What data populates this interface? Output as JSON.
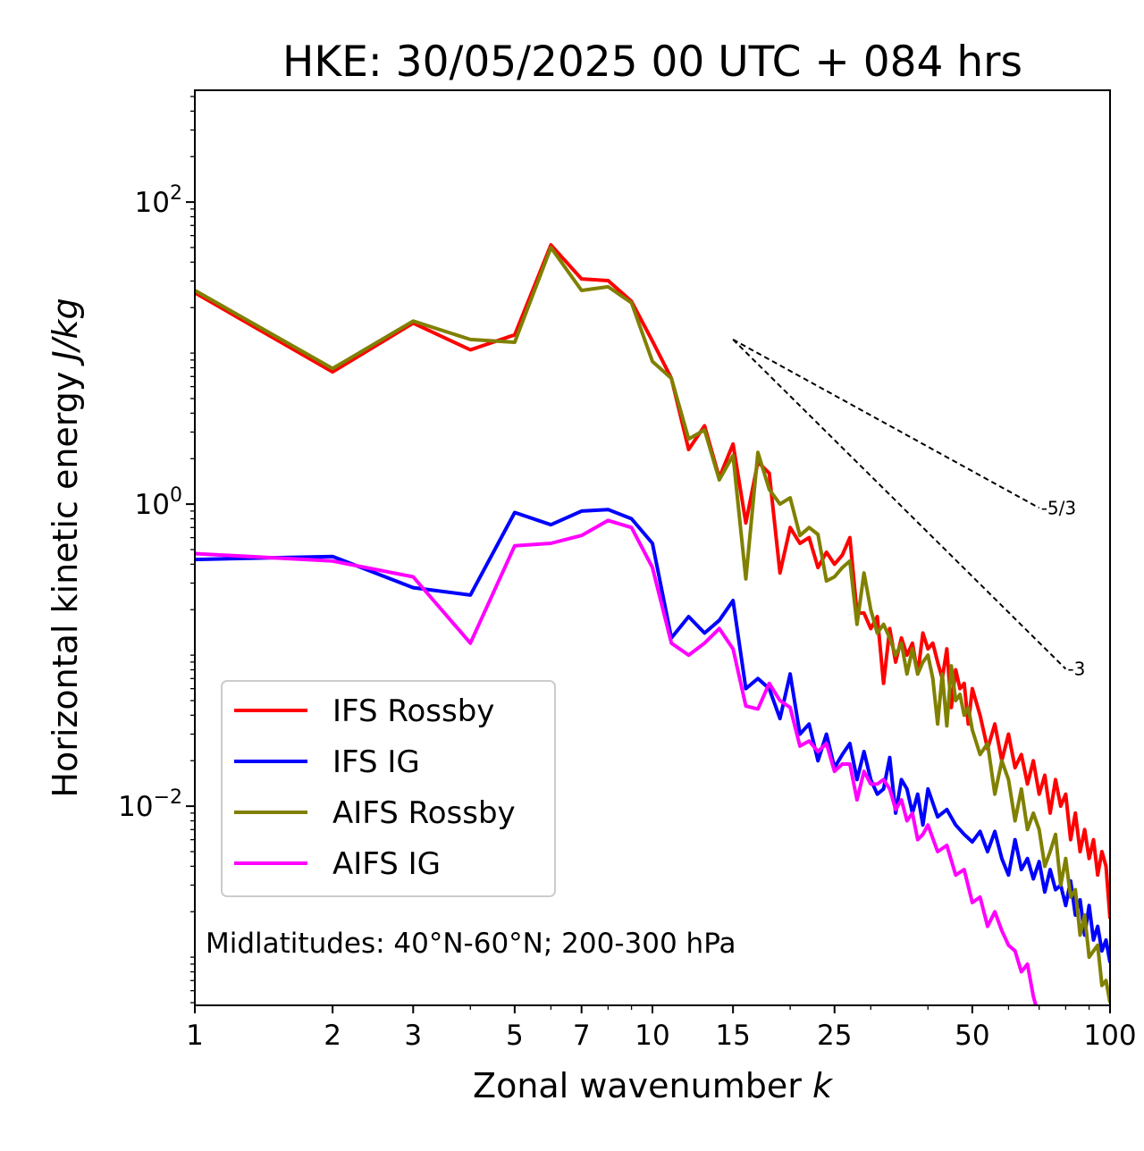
{
  "chart_data": {
    "type": "line",
    "title": "HKE: 30/05/2025 00 UTC + 084 hrs",
    "xlabel": "Zonal wavenumber",
    "xlabel_var": "k",
    "ylabel": "Horizontal kinetic energy",
    "ylabel_unit": "J/kg",
    "xscale": "log",
    "yscale": "log",
    "xlim": [
      1,
      100
    ],
    "ylim": [
      0.00048,
      550
    ],
    "xticks": [
      1,
      2,
      3,
      5,
      7,
      10,
      15,
      25,
      50,
      100
    ],
    "xtick_labels": [
      "1",
      "2",
      "3",
      "5",
      "7",
      "10",
      "15",
      "25",
      "50",
      "100"
    ],
    "yticks": [
      {
        "value": 100,
        "base": "10",
        "exp": "2"
      },
      {
        "value": 1,
        "base": "10",
        "exp": "0"
      },
      {
        "value": 0.01,
        "base": "10",
        "exp": "−2"
      }
    ],
    "grid": false,
    "legend_position": "lower-left",
    "annotation": "Midlatitudes: 40°N-60°N; 200-300 hPa",
    "reference_slopes": [
      {
        "label": "-5/3",
        "slope": -1.6667,
        "x": [
          15,
          70
        ],
        "y0": 12.3
      },
      {
        "label": "-3",
        "slope": -3,
        "x": [
          15,
          80
        ],
        "y0": 12.3
      }
    ],
    "series": [
      {
        "name": "IFS Rossby",
        "color": "#ff0000",
        "points": [
          [
            1,
            25.1
          ],
          [
            2,
            7.5
          ],
          [
            3,
            15.8
          ],
          [
            4,
            10.5
          ],
          [
            5,
            13.2
          ],
          [
            6,
            52
          ],
          [
            7,
            31
          ],
          [
            8,
            30.2
          ],
          [
            9,
            22
          ],
          [
            10,
            12
          ],
          [
            11,
            6.8
          ],
          [
            12,
            2.3
          ],
          [
            13,
            3.3
          ],
          [
            14,
            1.5
          ],
          [
            15,
            2.5
          ],
          [
            16,
            0.75
          ],
          [
            17,
            1.9
          ],
          [
            18,
            1.6
          ],
          [
            19,
            0.35
          ],
          [
            20,
            0.7
          ],
          [
            21,
            0.55
          ],
          [
            22,
            0.6
          ],
          [
            23,
            0.38
          ],
          [
            24,
            0.48
          ],
          [
            25,
            0.4
          ],
          [
            26,
            0.46
          ],
          [
            27,
            0.6
          ],
          [
            28,
            0.19
          ],
          [
            29,
            0.19
          ],
          [
            30,
            0.15
          ],
          [
            31,
            0.18
          ],
          [
            32,
            0.065
          ],
          [
            33,
            0.15
          ],
          [
            34,
            0.09
          ],
          [
            35,
            0.13
          ],
          [
            36,
            0.1
          ],
          [
            37,
            0.12
          ],
          [
            38,
            0.075
          ],
          [
            39,
            0.14
          ],
          [
            40,
            0.11
          ],
          [
            41,
            0.12
          ],
          [
            42,
            0.09
          ],
          [
            43,
            0.07
          ],
          [
            44,
            0.11
          ],
          [
            45,
            0.045
          ],
          [
            46,
            0.08
          ],
          [
            47,
            0.06
          ],
          [
            48,
            0.065
          ],
          [
            49,
            0.035
          ],
          [
            50,
            0.06
          ],
          [
            52,
            0.04
          ],
          [
            54,
            0.024
          ],
          [
            56,
            0.035
          ],
          [
            58,
            0.02
          ],
          [
            60,
            0.03
          ],
          [
            62,
            0.018
          ],
          [
            64,
            0.022
          ],
          [
            66,
            0.014
          ],
          [
            68,
            0.02
          ],
          [
            70,
            0.012
          ],
          [
            72,
            0.016
          ],
          [
            74,
            0.009
          ],
          [
            76,
            0.015
          ],
          [
            78,
            0.01
          ],
          [
            80,
            0.012
          ],
          [
            82,
            0.006
          ],
          [
            84,
            0.009
          ],
          [
            86,
            0.005
          ],
          [
            88,
            0.007
          ],
          [
            90,
            0.0045
          ],
          [
            92,
            0.006
          ],
          [
            94,
            0.0035
          ],
          [
            96,
            0.005
          ],
          [
            98,
            0.004
          ],
          [
            100,
            0.0018
          ]
        ]
      },
      {
        "name": "IFS IG",
        "color": "#0000ff",
        "points": [
          [
            1,
            0.43
          ],
          [
            2,
            0.45
          ],
          [
            3,
            0.28
          ],
          [
            4,
            0.25
          ],
          [
            5,
            0.88
          ],
          [
            6,
            0.73
          ],
          [
            7,
            0.9
          ],
          [
            8,
            0.92
          ],
          [
            9,
            0.8
          ],
          [
            10,
            0.55
          ],
          [
            11,
            0.13
          ],
          [
            12,
            0.18
          ],
          [
            13,
            0.14
          ],
          [
            14,
            0.17
          ],
          [
            15,
            0.23
          ],
          [
            16,
            0.06
          ],
          [
            17,
            0.07
          ],
          [
            18,
            0.06
          ],
          [
            19,
            0.038
          ],
          [
            20,
            0.075
          ],
          [
            21,
            0.03
          ],
          [
            22,
            0.035
          ],
          [
            23,
            0.02
          ],
          [
            24,
            0.03
          ],
          [
            25,
            0.018
          ],
          [
            26,
            0.022
          ],
          [
            27,
            0.026
          ],
          [
            28,
            0.015
          ],
          [
            29,
            0.023
          ],
          [
            30,
            0.015
          ],
          [
            31,
            0.012
          ],
          [
            32,
            0.013
          ],
          [
            33,
            0.021
          ],
          [
            34,
            0.009
          ],
          [
            35,
            0.015
          ],
          [
            36,
            0.013
          ],
          [
            37,
            0.009
          ],
          [
            38,
            0.012
          ],
          [
            39,
            0.0075
          ],
          [
            40,
            0.013
          ],
          [
            42,
            0.0085
          ],
          [
            44,
            0.0095
          ],
          [
            46,
            0.0075
          ],
          [
            48,
            0.0065
          ],
          [
            50,
            0.0058
          ],
          [
            52,
            0.0068
          ],
          [
            54,
            0.005
          ],
          [
            56,
            0.0068
          ],
          [
            58,
            0.0045
          ],
          [
            60,
            0.0035
          ],
          [
            62,
            0.006
          ],
          [
            64,
            0.0038
          ],
          [
            66,
            0.0045
          ],
          [
            68,
            0.0033
          ],
          [
            70,
            0.0043
          ],
          [
            72,
            0.0027
          ],
          [
            74,
            0.0038
          ],
          [
            76,
            0.0028
          ],
          [
            78,
            0.003
          ],
          [
            80,
            0.0022
          ],
          [
            82,
            0.0032
          ],
          [
            84,
            0.0019
          ],
          [
            86,
            0.0024
          ],
          [
            88,
            0.0014
          ],
          [
            90,
            0.0022
          ],
          [
            92,
            0.0013
          ],
          [
            94,
            0.0016
          ],
          [
            96,
            0.0011
          ],
          [
            98,
            0.0013
          ],
          [
            100,
            0.00092
          ]
        ]
      },
      {
        "name": "AIFS Rossby",
        "color": "#808000",
        "points": [
          [
            1,
            26
          ],
          [
            2,
            7.9
          ],
          [
            3,
            16.3
          ],
          [
            4,
            12.3
          ],
          [
            5,
            11.8
          ],
          [
            6,
            50
          ],
          [
            7,
            26
          ],
          [
            8,
            27.5
          ],
          [
            9,
            21.5
          ],
          [
            10,
            8.8
          ],
          [
            11,
            6.8
          ],
          [
            12,
            2.7
          ],
          [
            13,
            3.1
          ],
          [
            14,
            1.45
          ],
          [
            15,
            2.1
          ],
          [
            16,
            0.32
          ],
          [
            17,
            2.2
          ],
          [
            18,
            1.25
          ],
          [
            19,
            1.0
          ],
          [
            20,
            1.1
          ],
          [
            21,
            0.62
          ],
          [
            22,
            0.7
          ],
          [
            23,
            0.63
          ],
          [
            24,
            0.31
          ],
          [
            25,
            0.33
          ],
          [
            26,
            0.38
          ],
          [
            27,
            0.42
          ],
          [
            28,
            0.16
          ],
          [
            29,
            0.35
          ],
          [
            30,
            0.2
          ],
          [
            31,
            0.14
          ],
          [
            32,
            0.16
          ],
          [
            33,
            0.13
          ],
          [
            34,
            0.1
          ],
          [
            35,
            0.12
          ],
          [
            36,
            0.075
          ],
          [
            37,
            0.11
          ],
          [
            38,
            0.075
          ],
          [
            39,
            0.09
          ],
          [
            40,
            0.1
          ],
          [
            41,
            0.07
          ],
          [
            42,
            0.035
          ],
          [
            43,
            0.075
          ],
          [
            44,
            0.034
          ],
          [
            45,
            0.085
          ],
          [
            46,
            0.05
          ],
          [
            47,
            0.055
          ],
          [
            48,
            0.04
          ],
          [
            49,
            0.045
          ],
          [
            50,
            0.032
          ],
          [
            52,
            0.022
          ],
          [
            54,
            0.026
          ],
          [
            56,
            0.012
          ],
          [
            58,
            0.02
          ],
          [
            60,
            0.015
          ],
          [
            62,
            0.008
          ],
          [
            64,
            0.013
          ],
          [
            66,
            0.007
          ],
          [
            68,
            0.009
          ],
          [
            70,
            0.007
          ],
          [
            72,
            0.004
          ],
          [
            74,
            0.005
          ],
          [
            76,
            0.0065
          ],
          [
            78,
            0.003
          ],
          [
            80,
            0.0045
          ],
          [
            82,
            0.0025
          ],
          [
            84,
            0.0028
          ],
          [
            86,
            0.0014
          ],
          [
            88,
            0.0019
          ],
          [
            90,
            0.001
          ],
          [
            92,
            0.0011
          ],
          [
            94,
            0.0012
          ],
          [
            96,
            0.00065
          ],
          [
            98,
            0.0007
          ],
          [
            100,
            0.0005
          ]
        ]
      },
      {
        "name": "AIFS IG",
        "color": "#ff00ff",
        "points": [
          [
            1,
            0.47
          ],
          [
            2,
            0.42
          ],
          [
            3,
            0.33
          ],
          [
            4,
            0.12
          ],
          [
            5,
            0.53
          ],
          [
            6,
            0.55
          ],
          [
            7,
            0.62
          ],
          [
            8,
            0.78
          ],
          [
            9,
            0.7
          ],
          [
            10,
            0.38
          ],
          [
            11,
            0.12
          ],
          [
            12,
            0.1
          ],
          [
            13,
            0.12
          ],
          [
            14,
            0.15
          ],
          [
            15,
            0.11
          ],
          [
            16,
            0.046
          ],
          [
            17,
            0.044
          ],
          [
            18,
            0.065
          ],
          [
            19,
            0.05
          ],
          [
            20,
            0.045
          ],
          [
            21,
            0.025
          ],
          [
            22,
            0.027
          ],
          [
            23,
            0.023
          ],
          [
            24,
            0.026
          ],
          [
            25,
            0.017
          ],
          [
            26,
            0.019
          ],
          [
            27,
            0.019
          ],
          [
            28,
            0.011
          ],
          [
            29,
            0.017
          ],
          [
            30,
            0.014
          ],
          [
            31,
            0.014
          ],
          [
            32,
            0.015
          ],
          [
            33,
            0.013
          ],
          [
            34,
            0.0095
          ],
          [
            35,
            0.011
          ],
          [
            36,
            0.008
          ],
          [
            37,
            0.009
          ],
          [
            38,
            0.006
          ],
          [
            39,
            0.0065
          ],
          [
            40,
            0.0075
          ],
          [
            42,
            0.005
          ],
          [
            44,
            0.0055
          ],
          [
            46,
            0.0035
          ],
          [
            48,
            0.0038
          ],
          [
            50,
            0.0023
          ],
          [
            52,
            0.0025
          ],
          [
            54,
            0.0016
          ],
          [
            56,
            0.002
          ],
          [
            58,
            0.0015
          ],
          [
            60,
            0.0012
          ],
          [
            62,
            0.0011
          ],
          [
            64,
            0.0008
          ],
          [
            66,
            0.0009
          ],
          [
            68,
            0.00055
          ],
          [
            70,
            0.0004
          ]
        ]
      }
    ]
  }
}
